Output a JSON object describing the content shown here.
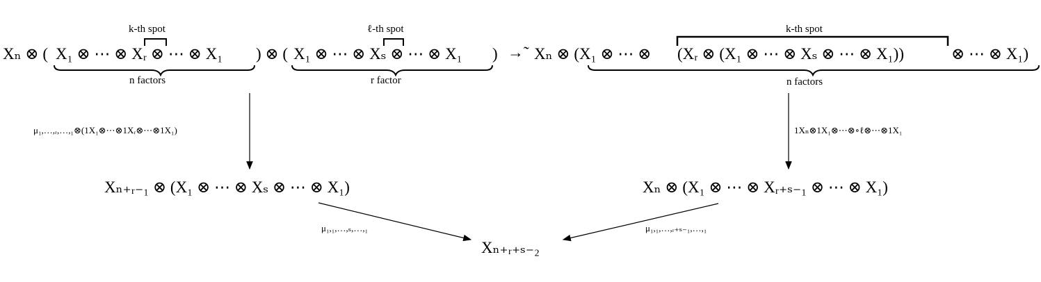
{
  "source": {
    "left": {
      "prefix": "Xₙ ⊗ (",
      "factors": "X₁ ⊗ ⋯ ⊗ Xᵣ ⊗ ⋯ ⊗ X₁",
      "middle": ") ⊗ (",
      "factors2": "X₁ ⊗ ⋯ ⊗ Xₛ ⊗ ⋯ ⊗ X₁",
      "suffix": ")",
      "spot1_label": "k-th spot",
      "spot2_label": "ℓ-th spot",
      "brace1_label": "n factors",
      "brace2_label": "r factor"
    },
    "iso_symbol": "→̃",
    "right": {
      "prefix": "Xₙ ⊗ (X₁ ⊗ ⋯ ⊗ ",
      "inner": "(Xᵣ ⊗ (X₁ ⊗ ⋯ ⊗ Xₛ ⊗ ⋯ ⊗ X₁))",
      "suffix": "⊗ ⋯ ⊗ X₁)",
      "spot_label": "k-th spot",
      "brace_label": "n factors"
    }
  },
  "middle": {
    "left_node": "Xₙ₊ᵣ₋₁ ⊗ (X₁ ⊗ ⋯ ⊗ Xₛ ⊗ ⋯ ⊗ X₁)",
    "right_node": "Xₙ ⊗ (X₁ ⊗ ⋯ ⊗ Xᵣ₊ₛ₋₁ ⊗ ⋯ ⊗ X₁)"
  },
  "target": "Xₙ₊ᵣ₊ₛ₋₂",
  "arrows": {
    "left_down_label": "μ₁,…,ᵣ,…,₁⊗(1X₁⊗⋯⊗1Xᵣ⊗⋯⊗1X₁)",
    "right_down_label": "1Xₙ⊗1X₁⊗⋯⊗∘ℓ⊗⋯⊗1X₁",
    "left_diag_label": "μ₁,₁,…,ₛ,…,₁",
    "right_diag_label": "μ₁,₁,…,ᵣ₊ₛ₋₁,…,₁"
  }
}
